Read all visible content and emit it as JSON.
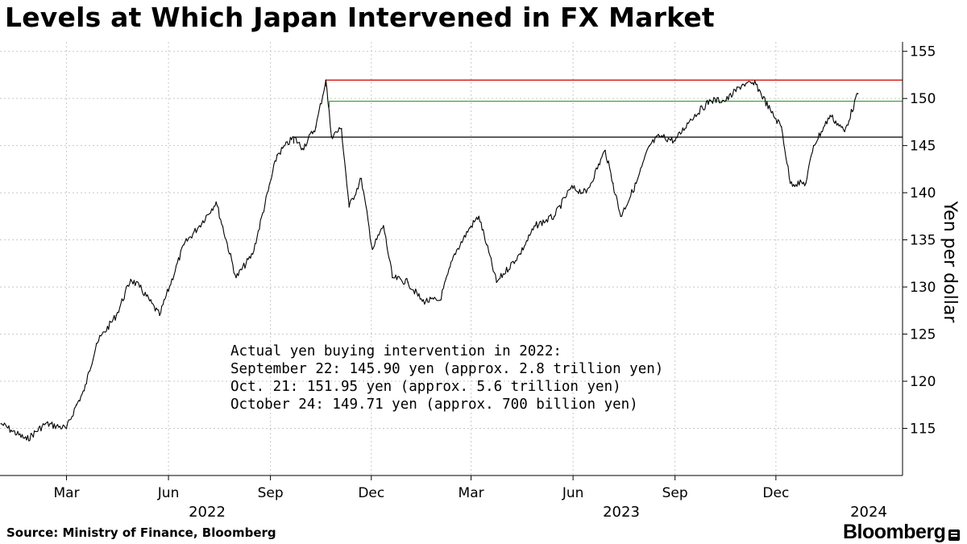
{
  "header": {
    "title": "Levels at Which Japan Intervened in FX Market"
  },
  "footer": {
    "source": "Source: Ministry of Finance, Bloomberg",
    "brand": "Bloomberg"
  },
  "chart_data": {
    "type": "line",
    "title": "Levels at Which Japan Intervened in FX Market",
    "ylabel": "Yen per dollar",
    "ylim": [
      110,
      156
    ],
    "yticks": [
      115,
      120,
      125,
      130,
      135,
      140,
      145,
      150,
      155
    ],
    "grid": true,
    "x_tick_labels": [
      "Mar",
      "Jun",
      "Sep",
      "Dec",
      "Mar",
      "Jun",
      "Sep",
      "Dec"
    ],
    "year_labels": [
      "2022",
      "2023",
      "2024"
    ],
    "series": [
      {
        "color": "#000000",
        "x": [
          "2022-01-01",
          "2022-01-10",
          "2022-01-24",
          "2022-02-10",
          "2022-03-01",
          "2022-03-10",
          "2022-03-17",
          "2022-03-28",
          "2022-04-15",
          "2022-04-28",
          "2022-05-06",
          "2022-05-24",
          "2022-06-15",
          "2022-06-29",
          "2022-07-14",
          "2022-08-01",
          "2022-08-16",
          "2022-09-07",
          "2022-09-22",
          "2022-09-30",
          "2022-10-12",
          "2022-10-21",
          "2022-10-26",
          "2022-11-04",
          "2022-11-11",
          "2022-11-22",
          "2022-12-02",
          "2022-12-12",
          "2022-12-20",
          "2023-01-03",
          "2023-01-16",
          "2023-02-01",
          "2023-02-14",
          "2023-02-28",
          "2023-03-08",
          "2023-03-15",
          "2023-03-24",
          "2023-04-14",
          "2023-04-28",
          "2023-05-15",
          "2023-05-30",
          "2023-06-13",
          "2023-06-30",
          "2023-07-07",
          "2023-07-14",
          "2023-07-28",
          "2023-08-09",
          "2023-08-18",
          "2023-09-01",
          "2023-09-15",
          "2023-10-03",
          "2023-10-17",
          "2023-11-01",
          "2023-11-13",
          "2023-11-27",
          "2023-12-06",
          "2023-12-14",
          "2023-12-28",
          "2024-01-04",
          "2024-01-19",
          "2024-02-01",
          "2024-02-13"
        ],
        "values": [
          115.5,
          114.8,
          113.8,
          115.5,
          115.0,
          117.5,
          119.0,
          124.0,
          127.0,
          130.8,
          130.0,
          127.0,
          134.5,
          136.5,
          139.0,
          131.0,
          133.5,
          144.0,
          145.9,
          144.7,
          147.0,
          151.95,
          146.0,
          146.8,
          138.5,
          141.5,
          134.0,
          136.5,
          131.0,
          130.5,
          128.5,
          128.6,
          133.5,
          136.3,
          137.5,
          134.5,
          130.5,
          133.5,
          136.5,
          137.5,
          140.5,
          140.0,
          144.5,
          141.0,
          137.5,
          141.0,
          145.0,
          146.0,
          145.5,
          147.8,
          149.8,
          149.8,
          151.5,
          151.5,
          148.5,
          147.0,
          141.0,
          141.0,
          145.0,
          148.2,
          146.5,
          150.5
        ]
      }
    ],
    "reference_levels": [
      {
        "value": 151.95,
        "color": "#cc0000",
        "start": "2022-10-21"
      },
      {
        "value": 149.71,
        "color": "#2ca02c",
        "start": "2022-10-24"
      },
      {
        "value": 145.9,
        "color": "#000000",
        "start": "2022-09-22"
      }
    ],
    "annotation": [
      "Actual yen buying intervention in 2022:",
      "September 22: 145.90 yen (approx. 2.8 trillion yen)",
      "Oct. 21: 151.95 yen (approx. 5.6 trillion yen)",
      "October 24: 149.71 yen (approx. 700 billion yen)"
    ]
  }
}
